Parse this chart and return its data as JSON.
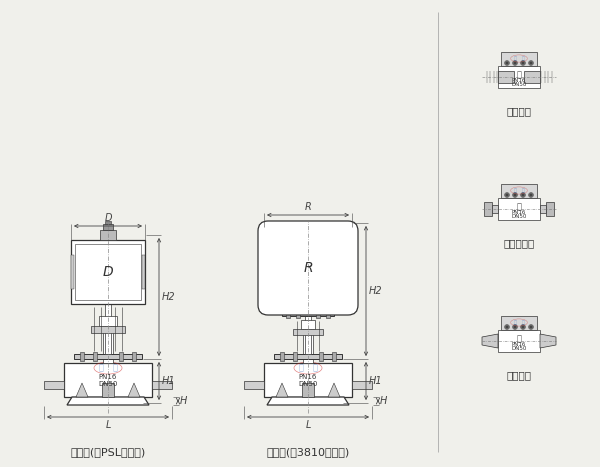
{
  "bg_color": "#f0f0eb",
  "line_color": "#333333",
  "dim_line_color": "#444444",
  "label_left": "低温型(配PSL执行器)",
  "label_right": "低温型(配3810执行器)",
  "label_screw": "螺纹连接",
  "label_socket": "承插焊连接",
  "label_butt": "对焊连接",
  "font_size_label": 8,
  "font_size_dim": 7,
  "font_size_pn": 5
}
